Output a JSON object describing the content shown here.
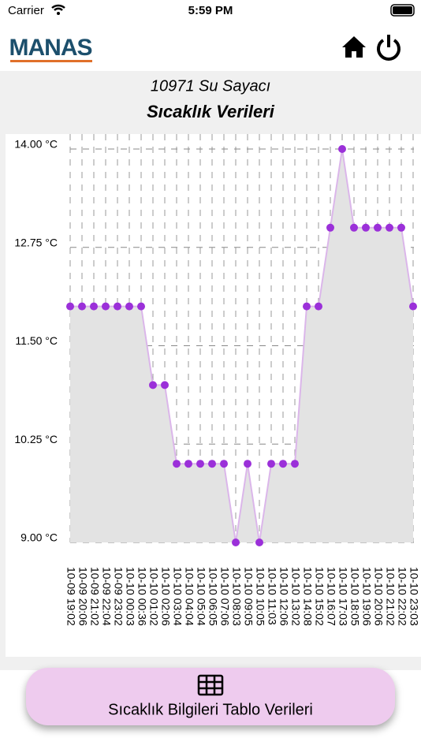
{
  "status_bar": {
    "carrier": "Carrier",
    "time": "5:59 PM"
  },
  "header": {
    "logo": "MANAS"
  },
  "chart_data": {
    "type": "line",
    "subtitle": "10971 Su Sayacı",
    "title": "Sıcaklık Verileri",
    "categories": [
      "10-09 19:02",
      "10-09 20:06",
      "10-09 21:02",
      "10-09 22:04",
      "10-09 23:02",
      "10-10 00:03",
      "10-10 00:36",
      "10-10 01:02",
      "10-10 02:06",
      "10-10 03:04",
      "10-10 04:04",
      "10-10 05:04",
      "10-10 06:05",
      "10-10 07:06",
      "10-10 08:03",
      "10-10 09:05",
      "10-10 10:05",
      "10-10 11:03",
      "10-10 12:06",
      "10-10 13:02",
      "10-10 14:08",
      "10-10 15:02",
      "10-10 16:07",
      "10-10 17:03",
      "10-10 18:05",
      "10-10 19:06",
      "10-10 20:06",
      "10-10 21:02",
      "10-10 22:02",
      "10-10 23:03"
    ],
    "values": [
      12,
      12,
      12,
      12,
      12,
      12,
      12,
      11,
      11,
      10,
      10,
      10,
      10,
      10,
      9,
      10,
      9,
      10,
      10,
      10,
      12,
      12,
      13,
      14,
      13,
      13,
      13,
      13,
      13,
      12
    ],
    "color": "#9b30d9",
    "line_color": "#dbb6ea",
    "area_color": "#e3e3e3",
    "ylim": [
      9,
      14
    ],
    "yticks": [
      {
        "value": 9,
        "label": "9.00 °C"
      },
      {
        "value": 10.25,
        "label": "10.25 °C"
      },
      {
        "value": 11.5,
        "label": "11.50 °C"
      },
      {
        "value": 12.75,
        "label": "12.75 °C"
      },
      {
        "value": 14,
        "label": "14.00 °C"
      }
    ],
    "grid": true
  },
  "button": {
    "label": "Sıcaklık Bilgileri Tablo Verileri"
  }
}
